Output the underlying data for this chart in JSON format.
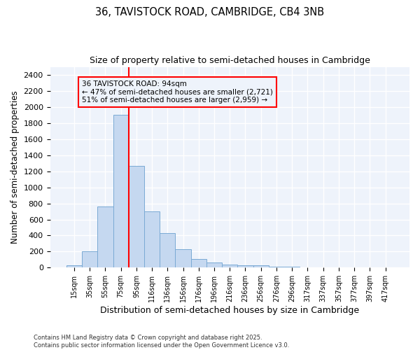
{
  "title1": "36, TAVISTOCK ROAD, CAMBRIDGE, CB4 3NB",
  "title2": "Size of property relative to semi-detached houses in Cambridge",
  "xlabel": "Distribution of semi-detached houses by size in Cambridge",
  "ylabel": "Number of semi-detached properties",
  "bar_labels": [
    "15sqm",
    "35sqm",
    "55sqm",
    "75sqm",
    "95sqm",
    "116sqm",
    "136sqm",
    "156sqm",
    "176sqm",
    "196sqm",
    "216sqm",
    "236sqm",
    "256sqm",
    "276sqm",
    "296sqm",
    "317sqm",
    "337sqm",
    "357sqm",
    "377sqm",
    "397sqm",
    "417sqm"
  ],
  "bar_values": [
    25,
    200,
    760,
    1900,
    1270,
    700,
    430,
    230,
    110,
    65,
    42,
    30,
    25,
    15,
    10,
    0,
    0,
    0,
    0,
    0,
    0
  ],
  "bar_color": "#c5d8f0",
  "bar_edgecolor": "#7aaad4",
  "vline_pos": 3.5,
  "vline_color": "red",
  "property_label": "36 TAVISTOCK ROAD: 94sqm",
  "annotation_line1": "← 47% of semi-detached houses are smaller (2,721)",
  "annotation_line2": "51% of semi-detached houses are larger (2,959) →",
  "box_edgecolor": "red",
  "ylim": [
    0,
    2500
  ],
  "yticks": [
    0,
    200,
    400,
    600,
    800,
    1000,
    1200,
    1400,
    1600,
    1800,
    2000,
    2200,
    2400
  ],
  "footer1": "Contains HM Land Registry data © Crown copyright and database right 2025.",
  "footer2": "Contains public sector information licensed under the Open Government Licence v3.0.",
  "bg_color": "#ffffff",
  "plot_bg_color": "#eef3fb",
  "grid_color": "white"
}
